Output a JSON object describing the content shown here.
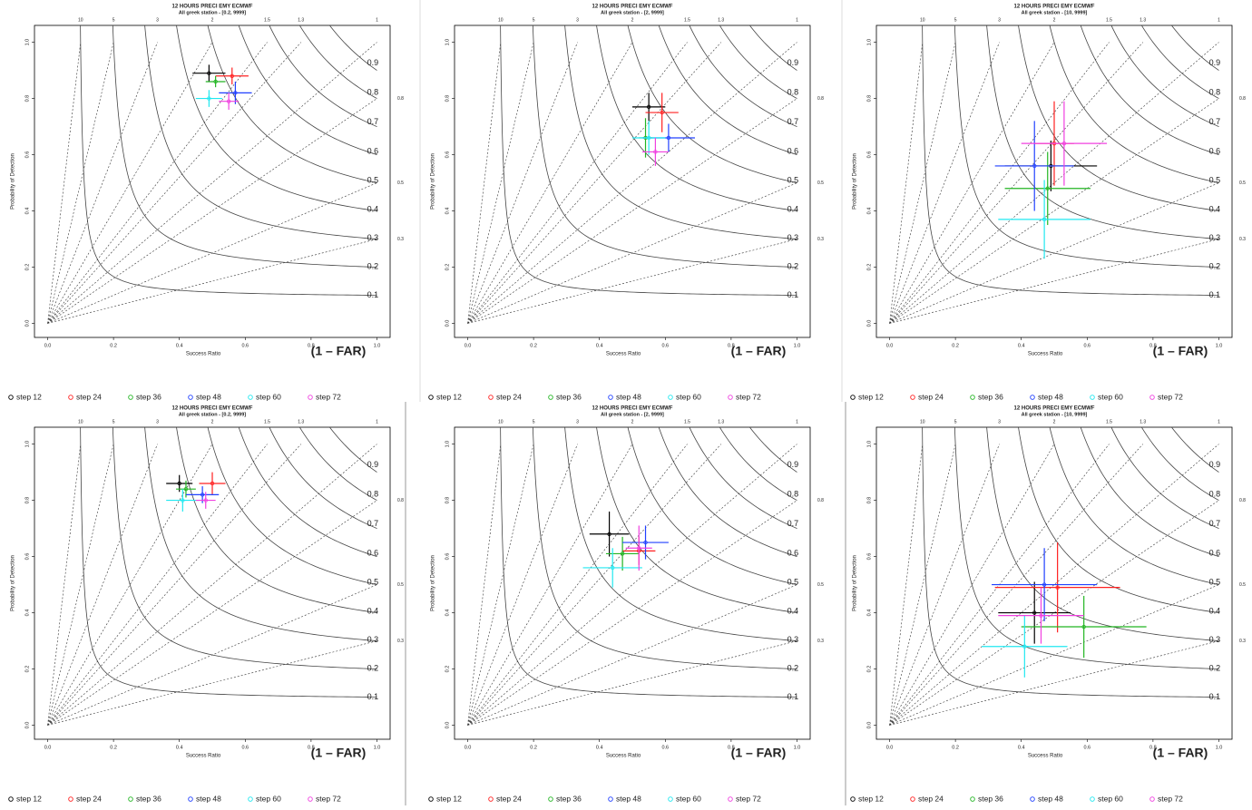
{
  "chart_data": [
    {
      "type": "scatter",
      "title": "12 HOURS PRECI EMY ECMWF",
      "subtitle": "All greek station -  [0.2, 9999]",
      "x_label": "Success Ratio",
      "y_label": "Probability of Detection",
      "annotation": "(1 – FAR)",
      "xlim": [
        -0.04,
        1.04
      ],
      "ylim": [
        -0.05,
        1.06
      ],
      "xticks": [
        {
          "value": 0,
          "label": "0.0"
        },
        0.2,
        0.4,
        0.6,
        0.8,
        {
          "value": 1,
          "label": "1.0"
        }
      ],
      "yticks": [
        {
          "value": 0,
          "label": "0.0"
        },
        0.2,
        0.4,
        0.6,
        0.8,
        {
          "value": 1,
          "label": "1.0"
        }
      ],
      "csi_contours": [
        0.1,
        0.2,
        0.3,
        0.4,
        0.5,
        0.6,
        0.7,
        0.8,
        0.9
      ],
      "bias_lines": [
        10,
        5,
        3,
        2,
        1.5,
        1.3,
        1,
        0.8,
        0.5,
        0.3
      ],
      "series": [
        {
          "name": "step 12",
          "color": "#000000",
          "x": [
            0.49
          ],
          "values": [
            0.89
          ],
          "x_err": [
            0.05
          ],
          "y_err": [
            0.03
          ]
        },
        {
          "name": "step 24",
          "color": "#ff2020",
          "x": [
            0.56
          ],
          "values": [
            0.88
          ],
          "x_err": [
            0.05
          ],
          "y_err": [
            0.03
          ]
        },
        {
          "name": "step 36",
          "color": "#22b522",
          "x": [
            0.51
          ],
          "values": [
            0.86
          ],
          "x_err": [
            0.03
          ],
          "y_err": [
            0.02
          ]
        },
        {
          "name": "step 48",
          "color": "#2040ff",
          "x": [
            0.57
          ],
          "values": [
            0.82
          ],
          "x_err": [
            0.05
          ],
          "y_err": [
            0.04
          ]
        },
        {
          "name": "step 60",
          "color": "#20e8f0",
          "x": [
            0.49
          ],
          "values": [
            0.8
          ],
          "x_err": [
            0.04
          ],
          "y_err": [
            0.03
          ]
        },
        {
          "name": "step 72",
          "color": "#f040e0",
          "x": [
            0.55
          ],
          "values": [
            0.79
          ],
          "x_err": [
            0.03
          ],
          "y_err": [
            0.03
          ]
        }
      ]
    },
    {
      "type": "scatter",
      "title": "12 HOURS PRECI EMY ECMWF",
      "subtitle": "All greek station -  [2, 9999]",
      "x_label": "Success Ratio",
      "y_label": "Probability of Detection",
      "annotation": "(1 – FAR)",
      "xlim": [
        -0.04,
        1.04
      ],
      "ylim": [
        -0.05,
        1.06
      ],
      "xticks": [
        {
          "value": 0,
          "label": "0.0"
        },
        0.2,
        0.4,
        0.6,
        0.8,
        {
          "value": 1,
          "label": "1.0"
        }
      ],
      "yticks": [
        {
          "value": 0,
          "label": "0.0"
        },
        0.2,
        0.4,
        0.6,
        0.8,
        {
          "value": 1,
          "label": "1.0"
        }
      ],
      "csi_contours": [
        0.1,
        0.2,
        0.3,
        0.4,
        0.5,
        0.6,
        0.7,
        0.8,
        0.9
      ],
      "bias_lines": [
        10,
        5,
        3,
        2,
        1.5,
        1.3,
        1,
        0.8,
        0.5,
        0.3
      ],
      "series": [
        {
          "name": "step 12",
          "color": "#000000",
          "x": [
            0.55
          ],
          "values": [
            0.77
          ],
          "x_err": [
            0.05
          ],
          "y_err": [
            0.05
          ]
        },
        {
          "name": "step 24",
          "color": "#ff2020",
          "x": [
            0.59
          ],
          "values": [
            0.75
          ],
          "x_err": [
            0.05
          ],
          "y_err": [
            0.07
          ]
        },
        {
          "name": "step 36",
          "color": "#22b522",
          "x": [
            0.54
          ],
          "values": [
            0.66
          ],
          "x_err": [
            0.02
          ],
          "y_err": [
            0.07
          ]
        },
        {
          "name": "step 48",
          "color": "#2040ff",
          "x": [
            0.61
          ],
          "values": [
            0.66
          ],
          "x_err": [
            0.08
          ],
          "y_err": [
            0.05
          ]
        },
        {
          "name": "step 60",
          "color": "#20e8f0",
          "x": [
            0.55
          ],
          "values": [
            0.66
          ],
          "x_err": [
            0.05
          ],
          "y_err": [
            0.06
          ]
        },
        {
          "name": "step 72",
          "color": "#f040e0",
          "x": [
            0.57
          ],
          "values": [
            0.61
          ],
          "x_err": [
            0.04
          ],
          "y_err": [
            0.05
          ]
        }
      ]
    },
    {
      "type": "scatter",
      "title": "12 HOURS PRECI EMY ECMWF",
      "subtitle": "All greek station -  [10, 9999]",
      "x_label": "Success Ratio",
      "y_label": "Probability of Detection",
      "annotation": "(1 – FAR)",
      "xlim": [
        -0.04,
        1.04
      ],
      "ylim": [
        -0.05,
        1.06
      ],
      "xticks": [
        {
          "value": 0,
          "label": "0.0"
        },
        0.2,
        0.4,
        0.6,
        0.8,
        {
          "value": 1,
          "label": "1.0"
        }
      ],
      "yticks": [
        {
          "value": 0,
          "label": "0.0"
        },
        0.2,
        0.4,
        0.6,
        0.8,
        {
          "value": 1,
          "label": "1.0"
        }
      ],
      "csi_contours": [
        0.1,
        0.2,
        0.3,
        0.4,
        0.5,
        0.6,
        0.7,
        0.8,
        0.9
      ],
      "bias_lines": [
        10,
        5,
        3,
        2,
        1.5,
        1.3,
        1,
        0.8,
        0.5,
        0.3
      ],
      "series": [
        {
          "name": "step 12",
          "color": "#000000",
          "x": [
            0.49
          ],
          "values": [
            0.56
          ],
          "x_err": [
            0.14
          ],
          "y_err": [
            0.09
          ]
        },
        {
          "name": "step 24",
          "color": "#ff2020",
          "x": [
            0.5
          ],
          "values": [
            0.64
          ],
          "x_err": [
            0.06
          ],
          "y_err": [
            0.15
          ]
        },
        {
          "name": "step 36",
          "color": "#22b522",
          "x": [
            0.48
          ],
          "values": [
            0.48
          ],
          "x_err": [
            0.13
          ],
          "y_err": [
            0.13
          ]
        },
        {
          "name": "step 48",
          "color": "#2040ff",
          "x": [
            0.44
          ],
          "values": [
            0.56
          ],
          "x_err": [
            0.12
          ],
          "y_err": [
            0.16
          ]
        },
        {
          "name": "step 60",
          "color": "#20e8f0",
          "x": [
            0.47
          ],
          "values": [
            0.37
          ],
          "x_err": [
            0.14
          ],
          "y_err": [
            0.14
          ]
        },
        {
          "name": "step 72",
          "color": "#f040e0",
          "x": [
            0.53
          ],
          "values": [
            0.64
          ],
          "x_err": [
            0.13
          ],
          "y_err": [
            0.15
          ]
        }
      ]
    },
    {
      "type": "scatter",
      "title": "12 HOURS PRECI EMY ECMWF",
      "subtitle": "All greek station -  [0.2, 9999]",
      "x_label": "Success Ratio",
      "y_label": "Probability of Detection",
      "annotation": "(1 – FAR)",
      "xlim": [
        -0.04,
        1.04
      ],
      "ylim": [
        -0.05,
        1.06
      ],
      "xticks": [
        {
          "value": 0,
          "label": "0.0"
        },
        0.2,
        0.4,
        0.6,
        0.8,
        {
          "value": 1,
          "label": "1.0"
        }
      ],
      "yticks": [
        {
          "value": 0,
          "label": "0.0"
        },
        0.2,
        0.4,
        0.6,
        0.8,
        {
          "value": 1,
          "label": "1.0"
        }
      ],
      "csi_contours": [
        0.1,
        0.2,
        0.3,
        0.4,
        0.5,
        0.6,
        0.7,
        0.8,
        0.9
      ],
      "bias_lines": [
        10,
        5,
        3,
        2,
        1.5,
        1.3,
        1,
        0.8,
        0.5,
        0.3
      ],
      "series": [
        {
          "name": "step 12",
          "color": "#000000",
          "x": [
            0.4
          ],
          "values": [
            0.86
          ],
          "x_err": [
            0.04
          ],
          "y_err": [
            0.03
          ]
        },
        {
          "name": "step 24",
          "color": "#ff2020",
          "x": [
            0.5
          ],
          "values": [
            0.86
          ],
          "x_err": [
            0.04
          ],
          "y_err": [
            0.04
          ]
        },
        {
          "name": "step 36",
          "color": "#22b522",
          "x": [
            0.42
          ],
          "values": [
            0.84
          ],
          "x_err": [
            0.03
          ],
          "y_err": [
            0.03
          ]
        },
        {
          "name": "step 48",
          "color": "#2040ff",
          "x": [
            0.47
          ],
          "values": [
            0.82
          ],
          "x_err": [
            0.05
          ],
          "y_err": [
            0.03
          ]
        },
        {
          "name": "step 60",
          "color": "#20e8f0",
          "x": [
            0.41
          ],
          "values": [
            0.8
          ],
          "x_err": [
            0.05
          ],
          "y_err": [
            0.04
          ]
        },
        {
          "name": "step 72",
          "color": "#f040e0",
          "x": [
            0.48
          ],
          "values": [
            0.8
          ],
          "x_err": [
            0.03
          ],
          "y_err": [
            0.03
          ]
        }
      ]
    },
    {
      "type": "scatter",
      "title": "12 HOURS PRECI EMY ECMWF",
      "subtitle": "All greek station -  [2, 9999]",
      "x_label": "Success Ratio",
      "y_label": "Probability of Detection",
      "annotation": "(1 – FAR)",
      "xlim": [
        -0.04,
        1.04
      ],
      "ylim": [
        -0.05,
        1.06
      ],
      "xticks": [
        {
          "value": 0,
          "label": "0.0"
        },
        0.2,
        0.4,
        0.6,
        0.8,
        {
          "value": 1,
          "label": "1.0"
        }
      ],
      "yticks": [
        {
          "value": 0,
          "label": "0.0"
        },
        0.2,
        0.4,
        0.6,
        0.8,
        {
          "value": 1,
          "label": "1.0"
        }
      ],
      "csi_contours": [
        0.1,
        0.2,
        0.3,
        0.4,
        0.5,
        0.6,
        0.7,
        0.8,
        0.9
      ],
      "bias_lines": [
        10,
        5,
        3,
        2,
        1.5,
        1.3,
        1,
        0.8,
        0.5,
        0.3
      ],
      "series": [
        {
          "name": "step 12",
          "color": "#000000",
          "x": [
            0.43
          ],
          "values": [
            0.68
          ],
          "x_err": [
            0.06
          ],
          "y_err": [
            0.08
          ]
        },
        {
          "name": "step 24",
          "color": "#ff2020",
          "x": [
            0.52
          ],
          "values": [
            0.62
          ],
          "x_err": [
            0.05
          ],
          "y_err": [
            0.05
          ]
        },
        {
          "name": "step 36",
          "color": "#22b522",
          "x": [
            0.47
          ],
          "values": [
            0.61
          ],
          "x_err": [
            0.05
          ],
          "y_err": [
            0.06
          ]
        },
        {
          "name": "step 48",
          "color": "#2040ff",
          "x": [
            0.54
          ],
          "values": [
            0.65
          ],
          "x_err": [
            0.07
          ],
          "y_err": [
            0.06
          ]
        },
        {
          "name": "step 60",
          "color": "#20e8f0",
          "x": [
            0.44
          ],
          "values": [
            0.56
          ],
          "x_err": [
            0.09
          ],
          "y_err": [
            0.07
          ]
        },
        {
          "name": "step 72",
          "color": "#f040e0",
          "x": [
            0.52
          ],
          "values": [
            0.63
          ],
          "x_err": [
            0.04
          ],
          "y_err": [
            0.08
          ]
        }
      ]
    },
    {
      "type": "scatter",
      "title": "12 HOURS PRECI EMY ECMWF",
      "subtitle": "All greek station -  [10, 9999]",
      "x_label": "Success Ratio",
      "y_label": "Probability of Detection",
      "annotation": "(1 – FAR)",
      "xlim": [
        -0.04,
        1.04
      ],
      "ylim": [
        -0.05,
        1.06
      ],
      "xticks": [
        {
          "value": 0,
          "label": "0.0"
        },
        0.2,
        0.4,
        0.6,
        0.8,
        {
          "value": 1,
          "label": "1.0"
        }
      ],
      "yticks": [
        {
          "value": 0,
          "label": "0.0"
        },
        0.2,
        0.4,
        0.6,
        0.8,
        {
          "value": 1,
          "label": "1.0"
        }
      ],
      "csi_contours": [
        0.1,
        0.2,
        0.3,
        0.4,
        0.5,
        0.6,
        0.7,
        0.8,
        0.9
      ],
      "bias_lines": [
        10,
        5,
        3,
        2,
        1.5,
        1.3,
        1,
        0.8,
        0.5,
        0.3
      ],
      "series": [
        {
          "name": "step 12",
          "color": "#000000",
          "x": [
            0.44
          ],
          "values": [
            0.4
          ],
          "x_err": [
            0.11
          ],
          "y_err": [
            0.11
          ]
        },
        {
          "name": "step 24",
          "color": "#ff2020",
          "x": [
            0.51
          ],
          "values": [
            0.49
          ],
          "x_err": [
            0.19
          ],
          "y_err": [
            0.16
          ]
        },
        {
          "name": "step 36",
          "color": "#22b522",
          "x": [
            0.59
          ],
          "values": [
            0.35
          ],
          "x_err": [
            0.19
          ],
          "y_err": [
            0.11
          ]
        },
        {
          "name": "step 48",
          "color": "#2040ff",
          "x": [
            0.47
          ],
          "values": [
            0.5
          ],
          "x_err": [
            0.16
          ],
          "y_err": [
            0.13
          ]
        },
        {
          "name": "step 60",
          "color": "#20e8f0",
          "x": [
            0.41
          ],
          "values": [
            0.28
          ],
          "x_err": [
            0.13
          ],
          "y_err": [
            0.11
          ]
        },
        {
          "name": "step 72",
          "color": "#f040e0",
          "x": [
            0.46
          ],
          "values": [
            0.39
          ],
          "x_err": [
            0.13
          ],
          "y_err": [
            0.1
          ]
        }
      ]
    }
  ]
}
